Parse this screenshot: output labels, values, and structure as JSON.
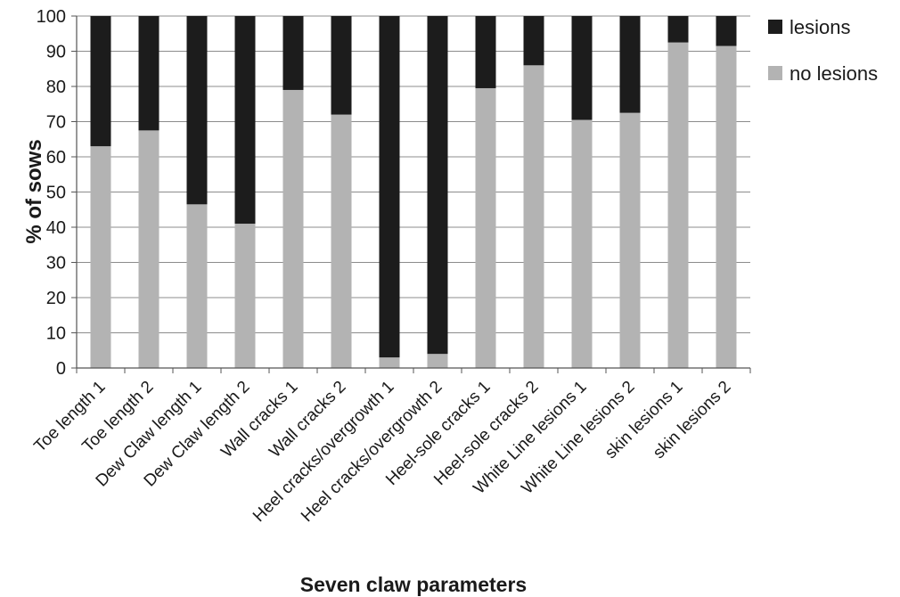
{
  "chart_data": {
    "type": "bar",
    "stacked": true,
    "percent_stacked": true,
    "title": "",
    "xlabel": "Seven claw parameters",
    "ylabel": "% of sows",
    "ylim": [
      0,
      100
    ],
    "yticks": [
      0,
      10,
      20,
      30,
      40,
      50,
      60,
      70,
      80,
      90,
      100
    ],
    "grid": true,
    "legend_position": "right",
    "categories": [
      "Toe length 1",
      "Toe length 2",
      "Dew Claw length 1",
      "Dew Claw length 2",
      "Wall cracks 1",
      "Wall cracks 2",
      "Heel cracks/overgrowth 1",
      "Heel cracks/overgrowth 2",
      "Heel-sole cracks 1",
      "Heel-sole cracks 2",
      "White Line lesions 1",
      "White Line lesions 2",
      "skin lesions 1",
      "skin lesions 2"
    ],
    "series": [
      {
        "name": "no lesions",
        "color": "#b3b3b3",
        "values": [
          63,
          67.5,
          46.5,
          41,
          79,
          72,
          3,
          4,
          79.5,
          86,
          70.5,
          72.5,
          92.5,
          91.5
        ]
      },
      {
        "name": "lesions",
        "color": "#1c1c1c",
        "values": [
          37,
          32.5,
          53.5,
          59,
          21,
          28,
          97,
          96,
          20.5,
          14,
          29.5,
          27.5,
          7.5,
          8.5
        ]
      }
    ],
    "legend": [
      {
        "name": "lesions",
        "color": "#1c1c1c"
      },
      {
        "name": "no lesions",
        "color": "#b3b3b3"
      }
    ]
  }
}
